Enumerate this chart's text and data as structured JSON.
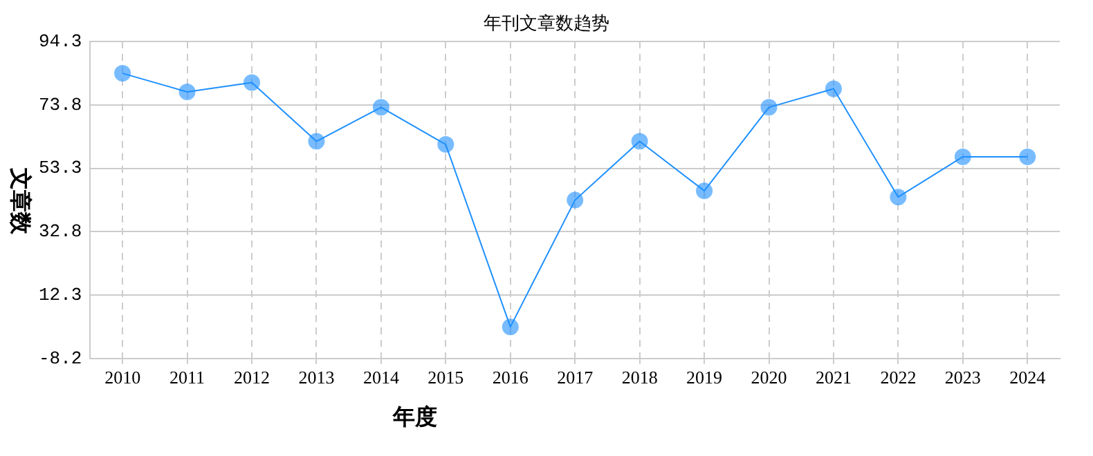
{
  "chart_data": {
    "type": "line",
    "title": "年刊文章数趋势",
    "xlabel": "年度",
    "ylabel": "文章数",
    "categories": [
      "2010",
      "2011",
      "2012",
      "2013",
      "2014",
      "2015",
      "2016",
      "2017",
      "2018",
      "2019",
      "2020",
      "2021",
      "2022",
      "2023",
      "2024"
    ],
    "series": [
      {
        "color": "#1e90ff",
        "values": [
          84,
          78,
          81,
          62,
          73,
          61,
          2,
          43,
          62,
          46,
          73,
          79,
          44,
          57,
          57
        ]
      }
    ],
    "ylim": [
      -8.2,
      94.3
    ],
    "yticks": [
      -8.2,
      12.3,
      32.8,
      53.3,
      73.8,
      94.3
    ],
    "grid": true,
    "marker": "circle",
    "line_style": "solid",
    "legend": false
  }
}
